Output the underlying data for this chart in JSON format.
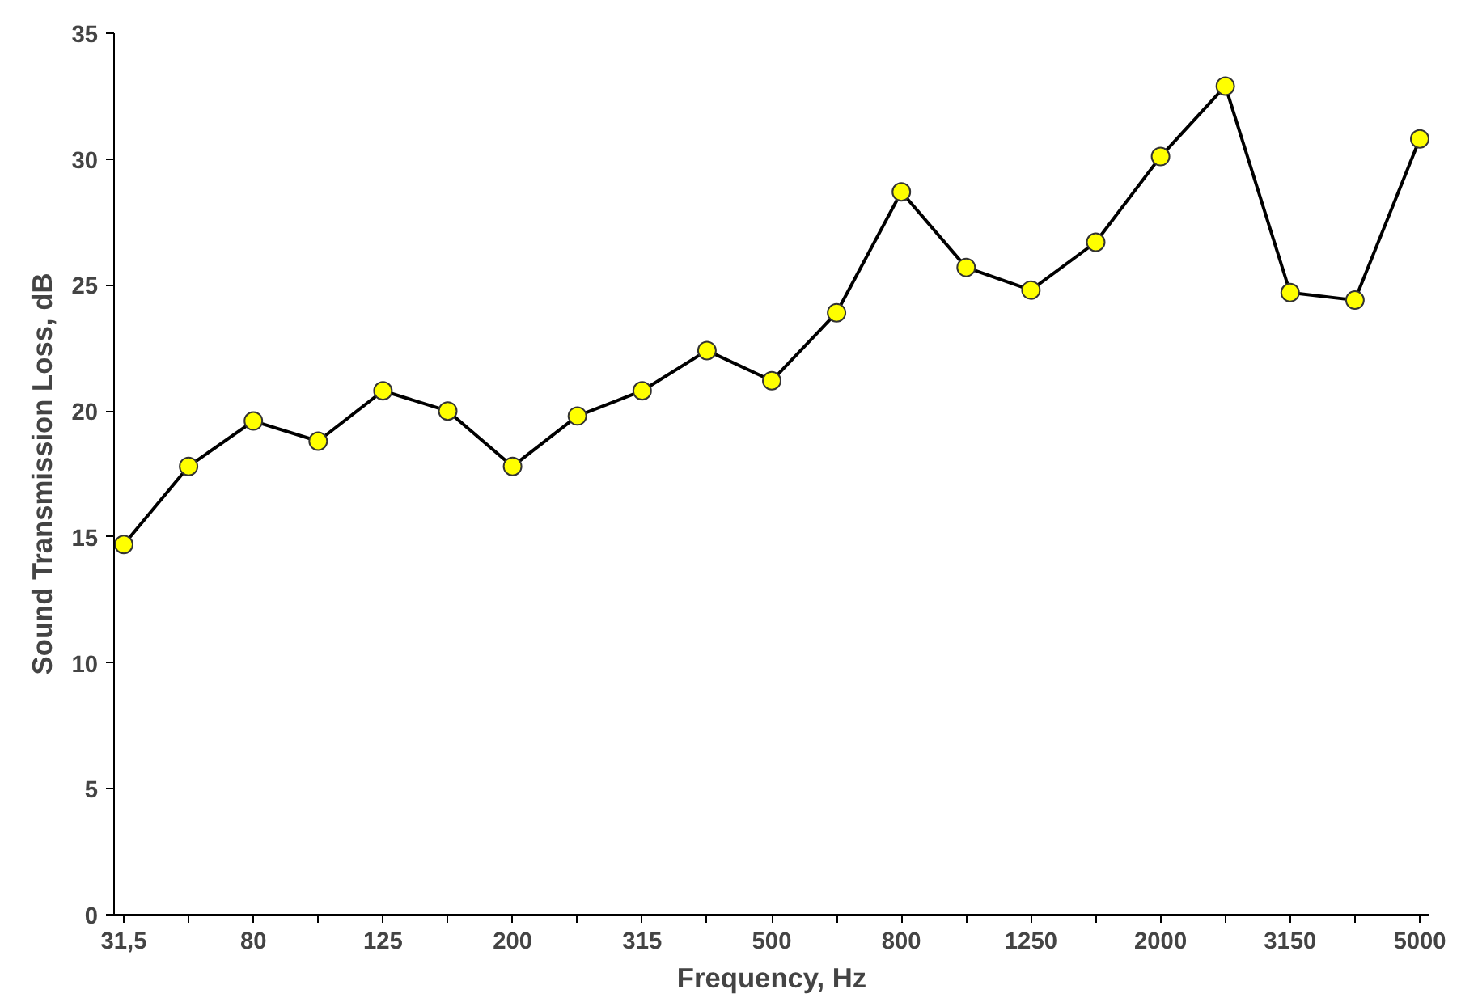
{
  "chart_data": {
    "type": "line",
    "xlabel": "Frequency, Hz",
    "ylabel": "Sound Transmission Loss, dB",
    "categories": [
      "31,5",
      null,
      "80",
      null,
      "125",
      null,
      "200",
      null,
      "315",
      null,
      "500",
      null,
      "800",
      null,
      "1250",
      null,
      "2000",
      null,
      "3150",
      null,
      "5000"
    ],
    "series": [
      {
        "color": "#ffff00",
        "values": [
          14.7,
          17.8,
          19.6,
          18.8,
          20.8,
          20.0,
          17.8,
          19.8,
          20.8,
          22.4,
          21.2,
          23.9,
          28.7,
          25.7,
          24.8,
          26.7,
          30.1,
          32.9,
          24.7,
          24.4,
          30.8
        ]
      }
    ],
    "ylim": [
      0,
      35
    ],
    "yticks": [
      0,
      5,
      10,
      15,
      20,
      25,
      30,
      35
    ],
    "grid": false,
    "marker": "circle",
    "line_style": "solid"
  }
}
